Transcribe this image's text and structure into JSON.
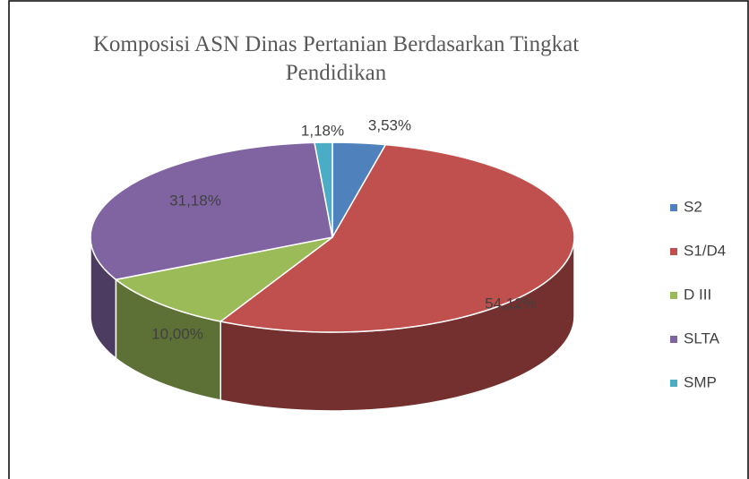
{
  "chart_data": {
    "type": "pie",
    "title": "Komposisi ASN Dinas Pertanian Berdasarkan Tingkat Pendidikan",
    "categories": [
      "S2",
      "S1/D4",
      "D III",
      "SLTA",
      "SMP"
    ],
    "values": [
      3.53,
      54.12,
      10.0,
      31.18,
      1.18
    ],
    "value_labels": [
      "3,53%",
      "54,12%",
      "10,00%",
      "31,18%",
      "1,18%"
    ],
    "colors": [
      "#4f81bd",
      "#c0504d",
      "#9bbb59",
      "#8064a2",
      "#4bacc6"
    ],
    "legend": "right"
  }
}
